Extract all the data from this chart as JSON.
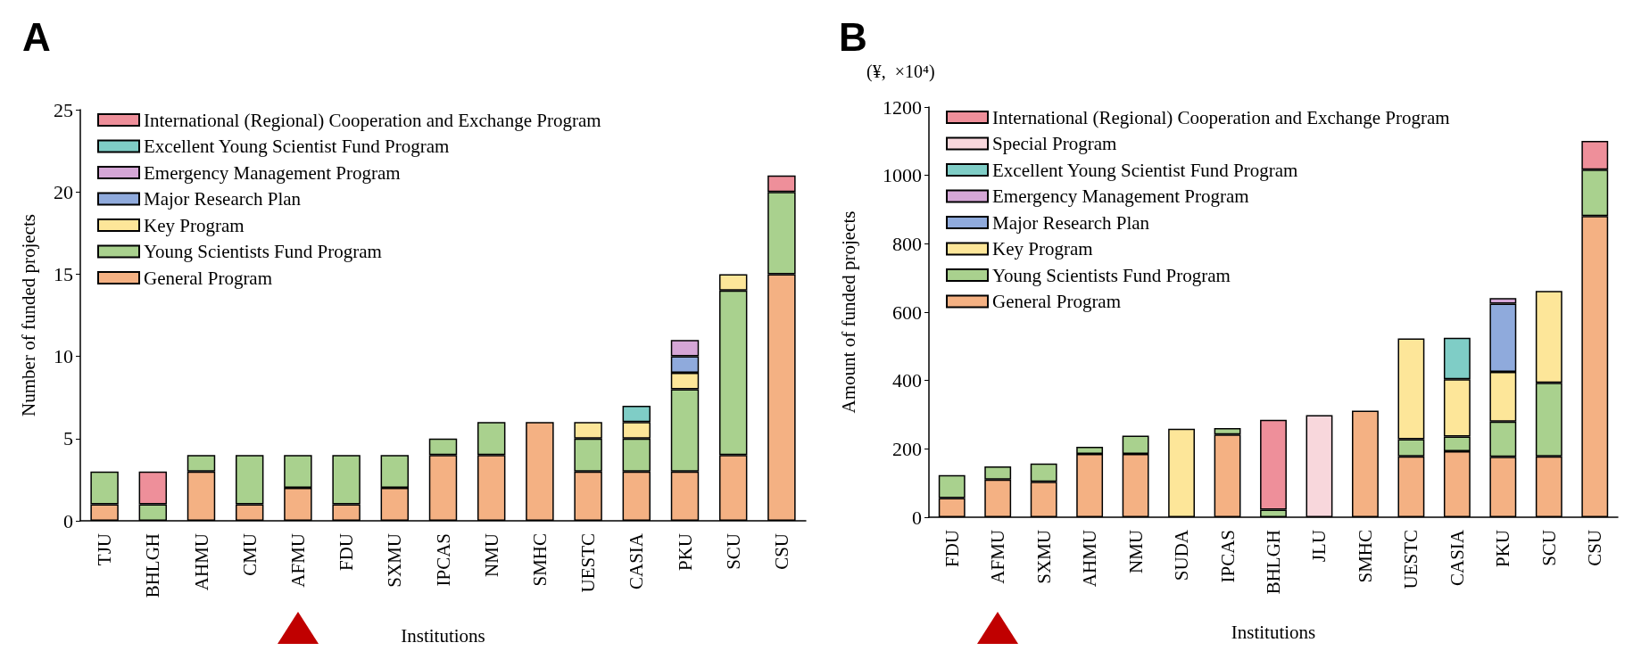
{
  "chart_data": [
    {
      "type": "bar",
      "title": "A",
      "stacked": true,
      "legend": "top left",
      "xlabel": "Institutions",
      "ylabel": "Number of funded projects",
      "categories": [
        "TJU",
        "BHLGH",
        "AHMU",
        "CMU",
        "AFMU",
        "FDU",
        "SXMU",
        "IPCAS",
        "NMU",
        "SMHC",
        "UESTC",
        "CASIA",
        "PKU",
        "SCU",
        "CSU"
      ],
      "ylim": [
        0,
        25
      ],
      "yticks": [
        0,
        5,
        10,
        15,
        20,
        25
      ],
      "series": [
        {
          "name": "General Program",
          "color": "#f4b183",
          "values": [
            1,
            null,
            3,
            1,
            2,
            1,
            2,
            4,
            4,
            6,
            3,
            3,
            3,
            4,
            15
          ]
        },
        {
          "name": "Young Scientists Fund Program",
          "color": "#a9d18e",
          "values": [
            2,
            1,
            1,
            3,
            2,
            3,
            2,
            1,
            2,
            null,
            2,
            2,
            5,
            10,
            5
          ]
        },
        {
          "name": "Key Program",
          "color": "#fde699",
          "values": [
            null,
            null,
            null,
            null,
            null,
            null,
            null,
            null,
            null,
            null,
            1,
            1,
            1,
            1,
            null
          ]
        },
        {
          "name": "Major Research Plan",
          "color": "#8faadc",
          "values": [
            null,
            null,
            null,
            null,
            null,
            null,
            null,
            null,
            null,
            null,
            null,
            null,
            1,
            null,
            null
          ]
        },
        {
          "name": "Emergency Management Program",
          "color": "#d5a6d6",
          "values": [
            null,
            null,
            null,
            null,
            null,
            null,
            null,
            null,
            null,
            null,
            null,
            null,
            1,
            null,
            null
          ]
        },
        {
          "name": "Excellent Young Scientist Fund Program",
          "color": "#7fcdc6",
          "values": [
            null,
            null,
            null,
            null,
            null,
            null,
            null,
            null,
            null,
            null,
            null,
            1,
            null,
            null,
            null
          ]
        },
        {
          "name": "International (Regional) Cooperation and Exchange Program",
          "color": "#ee8f9a",
          "values": [
            null,
            2,
            null,
            null,
            null,
            null,
            null,
            null,
            null,
            null,
            null,
            null,
            null,
            null,
            1
          ]
        }
      ]
    },
    {
      "type": "bar",
      "title": "B",
      "stacked": true,
      "legend": "top left",
      "xlabel": "Institutions",
      "ylabel": "Amount of funded projects",
      "annotations": [
        "(¥,  ×10⁴)"
      ],
      "categories": [
        "FDU",
        "AFMU",
        "SXMU",
        "AHMU",
        "NMU",
        "SUDA",
        "IPCAS",
        "BHLGH",
        "JLU",
        "SMHC",
        "UESTC",
        "CASIA",
        "PKU",
        "SCU",
        "CSU"
      ],
      "ylim": [
        0,
        1200
      ],
      "yticks": [
        0,
        200,
        400,
        600,
        800,
        1000,
        1200
      ],
      "series": [
        {
          "name": "General Program",
          "color": "#f4b183",
          "values": [
            56,
            110,
            104,
            185,
            185,
            null,
            242,
            null,
            null,
            312,
            178,
            193,
            177,
            178,
            881
          ]
        },
        {
          "name": "Young Scientists Fund Program",
          "color": "#a9d18e",
          "values": [
            67,
            39,
            53,
            21,
            54,
            null,
            19,
            22,
            null,
            null,
            50,
            43,
            103,
            215,
            136
          ]
        },
        {
          "name": "Key Program",
          "color": "#fde699",
          "values": [
            null,
            null,
            null,
            null,
            null,
            259,
            null,
            null,
            null,
            null,
            295,
            168,
            145,
            269,
            null
          ]
        },
        {
          "name": "Major Research Plan",
          "color": "#8faadc",
          "values": [
            null,
            null,
            null,
            null,
            null,
            null,
            null,
            null,
            null,
            null,
            null,
            null,
            200,
            null,
            null
          ]
        },
        {
          "name": "Emergency Management Program",
          "color": "#d5a6d6",
          "values": [
            null,
            null,
            null,
            null,
            null,
            null,
            null,
            null,
            null,
            null,
            null,
            null,
            16,
            null,
            null
          ]
        },
        {
          "name": "Excellent Young Scientist Fund Program",
          "color": "#7fcdc6",
          "values": [
            null,
            null,
            null,
            null,
            null,
            null,
            null,
            null,
            null,
            null,
            null,
            121,
            null,
            null,
            null
          ]
        },
        {
          "name": "Special Program",
          "color": "#f8d7dc",
          "values": [
            null,
            null,
            null,
            null,
            null,
            null,
            null,
            null,
            299,
            null,
            null,
            null,
            null,
            null,
            null
          ]
        },
        {
          "name": "International (Regional) Cooperation and Exchange Program",
          "color": "#ee8f9a",
          "values": [
            null,
            null,
            null,
            null,
            null,
            null,
            null,
            263,
            null,
            null,
            null,
            null,
            null,
            null,
            84
          ]
        }
      ]
    }
  ]
}
